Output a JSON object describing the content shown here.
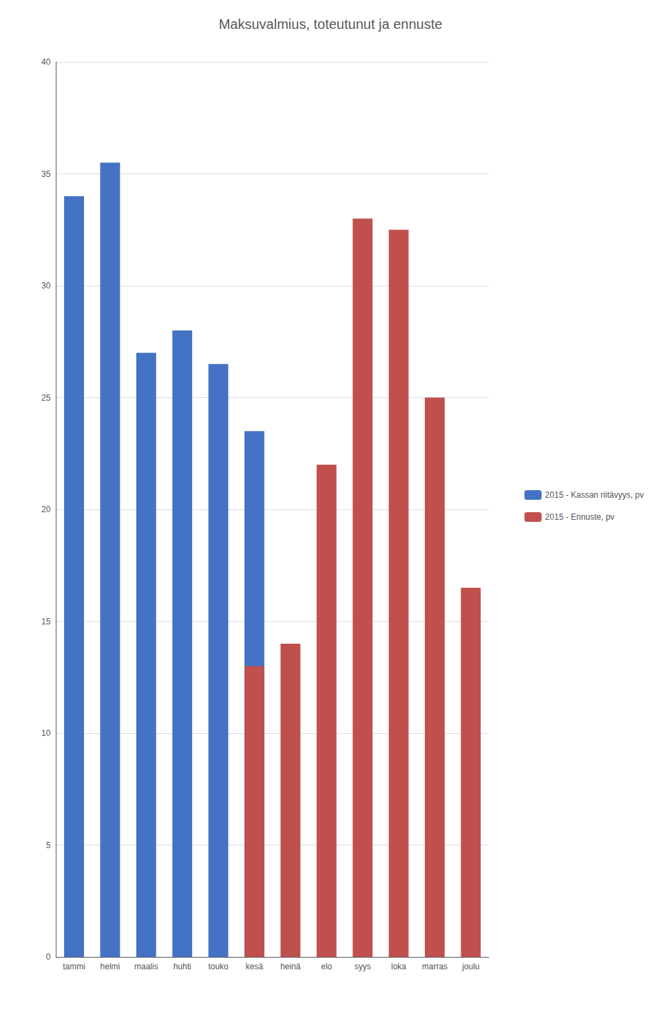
{
  "chart_data": {
    "type": "bar",
    "title": "Maksuvalmius, toteutunut ja ennuste",
    "categories": [
      "tammi",
      "helmi",
      "maalis",
      "huhti",
      "touko",
      "kesä",
      "heinä",
      "elo",
      "syys",
      "loka",
      "marras",
      "joulu"
    ],
    "series": [
      {
        "name": "2015 - Kassan riitävyys, pv",
        "color": "#4472C4",
        "values": [
          34,
          35.5,
          27,
          28,
          26.5,
          23.5,
          null,
          null,
          null,
          null,
          null,
          null
        ]
      },
      {
        "name": "2015 - Ennuste, pv",
        "color": "#C0504D",
        "values": [
          null,
          null,
          null,
          null,
          null,
          13,
          14,
          22,
          33,
          32.5,
          25,
          16.5
        ]
      }
    ],
    "ylim": [
      0,
      40
    ],
    "yticks": [
      0,
      5,
      10,
      15,
      20,
      25,
      30,
      35,
      40
    ],
    "grid": true,
    "legend": "right"
  }
}
